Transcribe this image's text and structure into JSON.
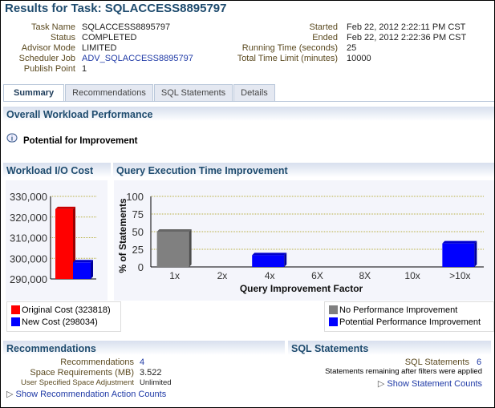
{
  "title": "Results for Task: SQLACCESS8895797",
  "info_left": [
    {
      "label": "Task Name",
      "value": "SQLACCESS8895797"
    },
    {
      "label": "Status",
      "value": "COMPLETED"
    },
    {
      "label": "Advisor Mode",
      "value": "LIMITED"
    },
    {
      "label": "Scheduler Job",
      "value": "ADV_SQLACCESS8895797",
      "link": true
    },
    {
      "label": "Publish Point",
      "value": "1"
    }
  ],
  "info_right": [
    {
      "label": "Started",
      "value": "Feb 22, 2012 2:22:11 PM CST"
    },
    {
      "label": "Ended",
      "value": "Feb 22, 2012 2:22:36 PM CST"
    },
    {
      "label": "Running Time (seconds)",
      "value": "25"
    },
    {
      "label": "Total Time Limit (minutes)",
      "value": "10000"
    }
  ],
  "tabs": [
    "Summary",
    "Recommendations",
    "SQL Statements",
    "Details"
  ],
  "active_tab": "Summary",
  "overall": {
    "title": "Overall Workload Performance",
    "info_icon": "info-icon",
    "message": "Potential for Improvement"
  },
  "chart_data": [
    {
      "type": "bar",
      "title": "Workload I/O Cost",
      "categories": [
        "Original Cost",
        "New Cost"
      ],
      "values": [
        323818,
        298034
      ],
      "colors": [
        "#ff0000",
        "#0000ff"
      ],
      "ylim": [
        290000,
        330000
      ],
      "yticks": [
        "330,000",
        "320,000",
        "310,000",
        "300,000",
        "290,000"
      ],
      "grid": true,
      "legend": [
        "Original Cost (323818)",
        "New Cost (298034)"
      ]
    },
    {
      "type": "bar",
      "title": "Query Execution Time Improvement",
      "xlabel": "Query Improvement Factor",
      "ylabel": "% of Statements",
      "categories": [
        "1x",
        "2x",
        "4x",
        "6X",
        "8X",
        "10x",
        ">10x"
      ],
      "values": [
        50,
        0,
        16.67,
        0,
        0,
        0,
        33.33
      ],
      "colors": [
        "#808080",
        "#0000ff",
        "#0000ff",
        "#0000ff",
        "#0000ff",
        "#0000ff",
        "#0000ff"
      ],
      "ylim": [
        0,
        100
      ],
      "yticks": [
        "100",
        "75",
        "50",
        "25",
        "0"
      ],
      "grid": true,
      "legend": [
        "No Performance Improvement",
        "Potential Performance Improvement"
      ],
      "legend_colors": [
        "#808080",
        "#0000ff"
      ]
    }
  ],
  "recommendations": {
    "title": "Recommendations",
    "rows": [
      {
        "label": "Recommendations",
        "value": "4"
      },
      {
        "label": "Space Requirements (MB)",
        "value": "3.522"
      },
      {
        "label": "User Specified Space Adjustment",
        "value": "Unlimited"
      }
    ],
    "toggle": "Show Recommendation Action Counts"
  },
  "sql": {
    "title": "SQL Statements",
    "label": "SQL Statements",
    "value": "6",
    "note": "Statements remaining after filters were applied",
    "toggle": "Show Statement Counts"
  }
}
